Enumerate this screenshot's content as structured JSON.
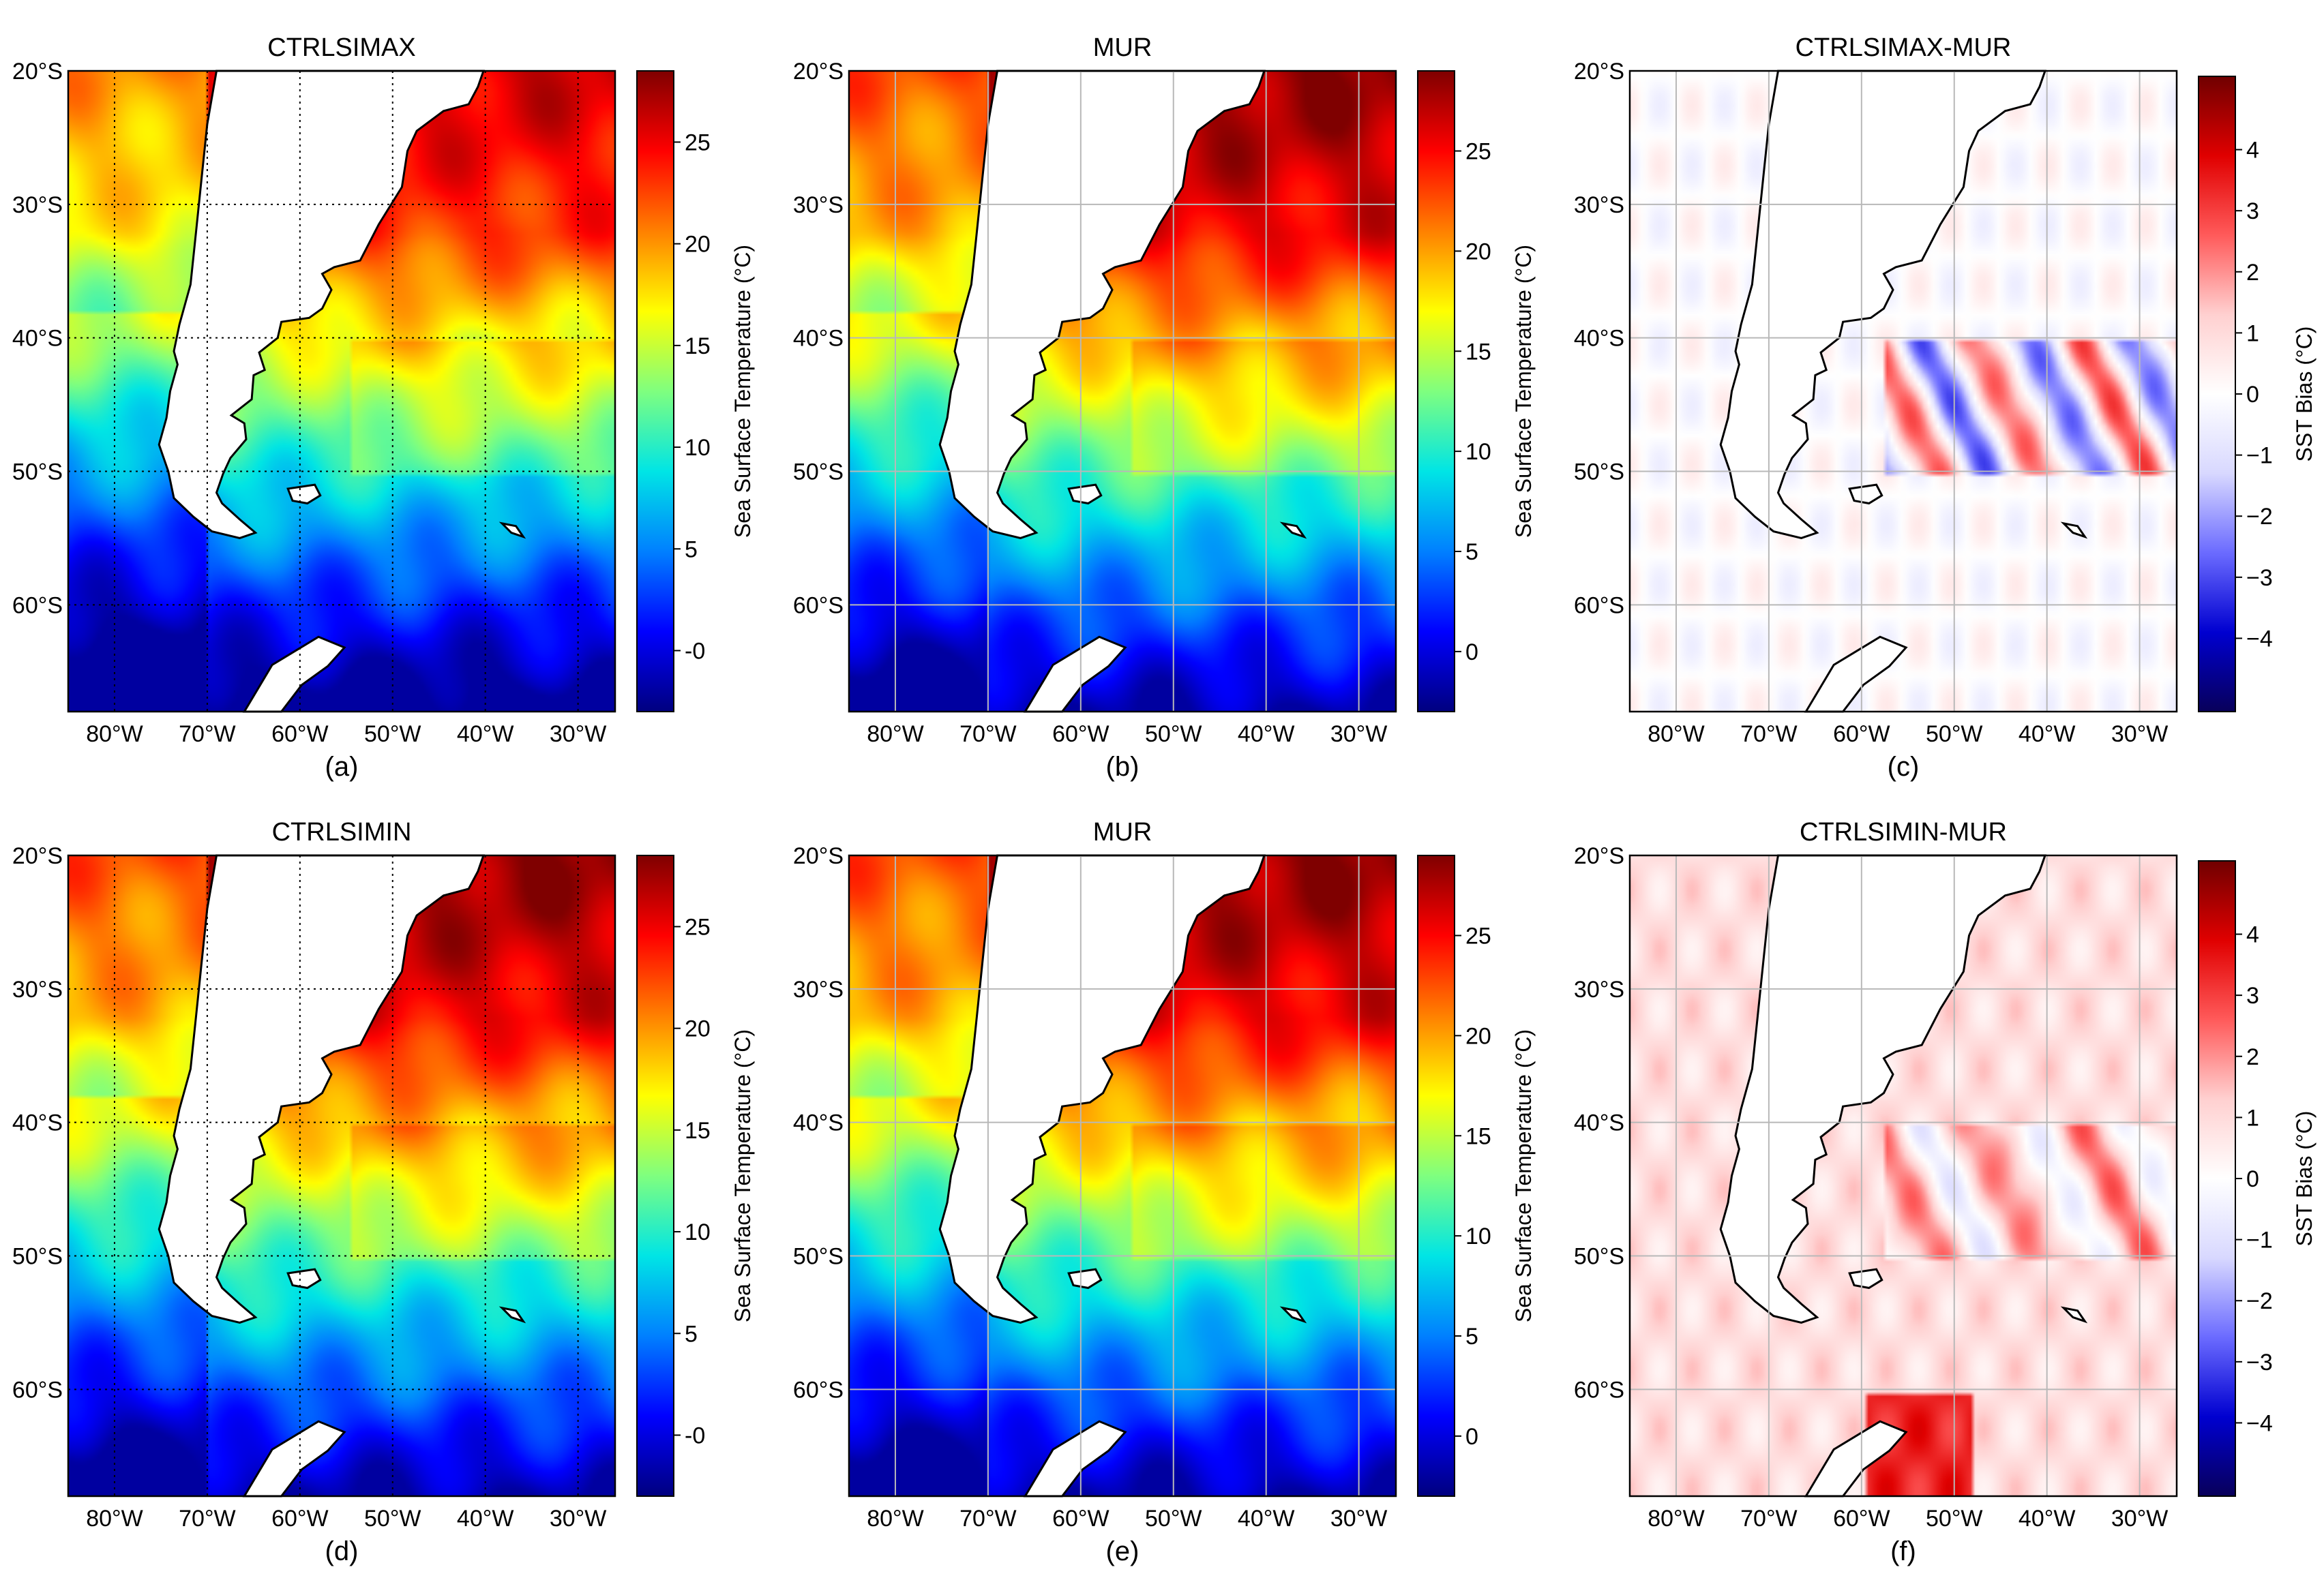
{
  "figure": {
    "lon_ticks": [
      "80°W",
      "70°W",
      "60°W",
      "50°W",
      "40°W",
      "30°W"
    ],
    "lat_ticks": [
      "20°S",
      "30°S",
      "40°S",
      "50°S",
      "60°S"
    ],
    "palettes": {
      "sst": [
        "#00007f",
        "#0000ff",
        "#0080ff",
        "#00e5e5",
        "#7fff7f",
        "#ffff00",
        "#ff8000",
        "#ff0000",
        "#7f0000"
      ],
      "bias": [
        "#08005a",
        "#0000d0",
        "#6b6bff",
        "#d8d8ff",
        "#ffffff",
        "#ffd0d0",
        "#ff5a5a",
        "#e00000",
        "#700000"
      ]
    }
  },
  "chart_data": [
    {
      "type": "heatmap",
      "panel": "(a)",
      "title": "CTRLSIMAX",
      "field": "sst",
      "gridlines": "dotted",
      "colorbar": {
        "label": "Sea Surface Temperature (°C)",
        "ticks": [
          "-0",
          "5",
          "10",
          "15",
          "20",
          "25"
        ],
        "tick_values": [
          0,
          5,
          10,
          15,
          20,
          25
        ],
        "range": [
          -3,
          28.5
        ]
      },
      "xlim": [
        -85,
        -26
      ],
      "ylim": [
        -68,
        -20
      ]
    },
    {
      "type": "heatmap",
      "panel": "(b)",
      "title": "MUR",
      "field": "sst",
      "gridlines": "solid",
      "colorbar": {
        "label": "Sea Surface Temperature (°C)",
        "ticks": [
          "0",
          "5",
          "10",
          "15",
          "20",
          "25"
        ],
        "tick_values": [
          0,
          5,
          10,
          15,
          20,
          25
        ],
        "range": [
          -3,
          29
        ]
      },
      "xlim": [
        -85,
        -26
      ],
      "ylim": [
        -68,
        -20
      ]
    },
    {
      "type": "heatmap",
      "panel": "(c)",
      "title": "CTRLSIMAX-MUR",
      "field": "bias",
      "gridlines": "solid",
      "colorbar": {
        "label": "SST Bias (°C)",
        "ticks": [
          "4",
          "3",
          "2",
          "1",
          "0",
          "−1",
          "−2",
          "−3",
          "−4"
        ],
        "tick_values": [
          4,
          3,
          2,
          1,
          0,
          -1,
          -2,
          -3,
          -4
        ],
        "range": [
          -5.2,
          5.2
        ]
      },
      "xlim": [
        -85,
        -26
      ],
      "ylim": [
        -68,
        -20
      ]
    },
    {
      "type": "heatmap",
      "panel": "(d)",
      "title": "CTRLSIMIN",
      "field": "sst",
      "gridlines": "dotted",
      "colorbar": {
        "label": "Sea Surface Temperature (°C)",
        "ticks": [
          "-0",
          "5",
          "10",
          "15",
          "20",
          "25"
        ],
        "tick_values": [
          0,
          5,
          10,
          15,
          20,
          25
        ],
        "range": [
          -3,
          28.5
        ]
      },
      "xlim": [
        -85,
        -26
      ],
      "ylim": [
        -68,
        -20
      ]
    },
    {
      "type": "heatmap",
      "panel": "(e)",
      "title": "MUR",
      "field": "sst",
      "gridlines": "solid",
      "colorbar": {
        "label": "Sea Surface Temperature (°C)",
        "ticks": [
          "0",
          "5",
          "10",
          "15",
          "20",
          "25"
        ],
        "tick_values": [
          0,
          5,
          10,
          15,
          20,
          25
        ],
        "range": [
          -3,
          29
        ]
      },
      "xlim": [
        -85,
        -26
      ],
      "ylim": [
        -68,
        -20
      ]
    },
    {
      "type": "heatmap",
      "panel": "(f)",
      "title": "CTRLSIMIN-MUR",
      "field": "bias",
      "gridlines": "solid",
      "colorbar": {
        "label": "SST Bias (°C)",
        "ticks": [
          "4",
          "3",
          "2",
          "1",
          "0",
          "−1",
          "−2",
          "−3",
          "−4"
        ],
        "tick_values": [
          4,
          3,
          2,
          1,
          0,
          -1,
          -2,
          -3,
          -4
        ],
        "range": [
          -5.2,
          5.2
        ]
      },
      "xlim": [
        -85,
        -26
      ],
      "ylim": [
        -68,
        -20
      ]
    }
  ]
}
